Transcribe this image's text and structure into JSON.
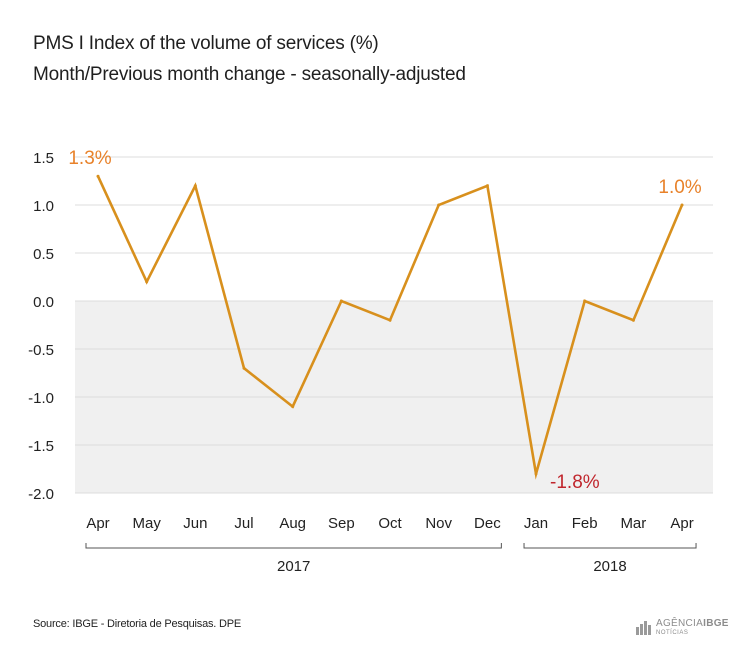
{
  "header": {
    "title": "PMS I Index of the volume of services (%)",
    "subtitle": "Month/Previous month change - seasonally-adjusted"
  },
  "chart_data": {
    "type": "line",
    "title": "PMS I Index of the volume of services (%)",
    "subtitle": "Month/Previous month change - seasonally-adjusted",
    "categories": [
      "Apr",
      "May",
      "Jun",
      "Jul",
      "Aug",
      "Sep",
      "Oct",
      "Nov",
      "Dec",
      "Jan",
      "Feb",
      "Mar",
      "Apr"
    ],
    "values": [
      1.3,
      0.2,
      1.2,
      -0.7,
      -1.1,
      0.0,
      -0.2,
      1.0,
      1.2,
      -1.8,
      0.0,
      -0.2,
      1.0
    ],
    "ylim": [
      -2.0,
      1.5
    ],
    "yticks": [
      "1.5",
      "1.0",
      "0.5",
      "0.0",
      "-0.5",
      "-1.0",
      "-1.5",
      "-2.0"
    ],
    "ytick_values": [
      1.5,
      1.0,
      0.5,
      0.0,
      -0.5,
      -1.0,
      -1.5,
      -2.0
    ],
    "groups": [
      {
        "label": "2017",
        "start": 0,
        "end": 8
      },
      {
        "label": "2018",
        "start": 9,
        "end": 12
      }
    ],
    "annotations": [
      {
        "index": 0,
        "text": "1.3%",
        "color": "#e8822a"
      },
      {
        "index": 9,
        "text": "-1.8%",
        "color": "#c0262d"
      },
      {
        "index": 12,
        "text": "1.0%",
        "color": "#e8822a"
      }
    ],
    "line_color": "#d8901d",
    "negative_band_color": "#f0f0f0",
    "grid": true
  },
  "footer": {
    "source": "Source: IBGE - Diretoria de Pesquisas. DPE",
    "logo_main_light": "AGÊNCIA",
    "logo_main_bold": "IBGE",
    "logo_sub": "NOTÍCIAS"
  }
}
